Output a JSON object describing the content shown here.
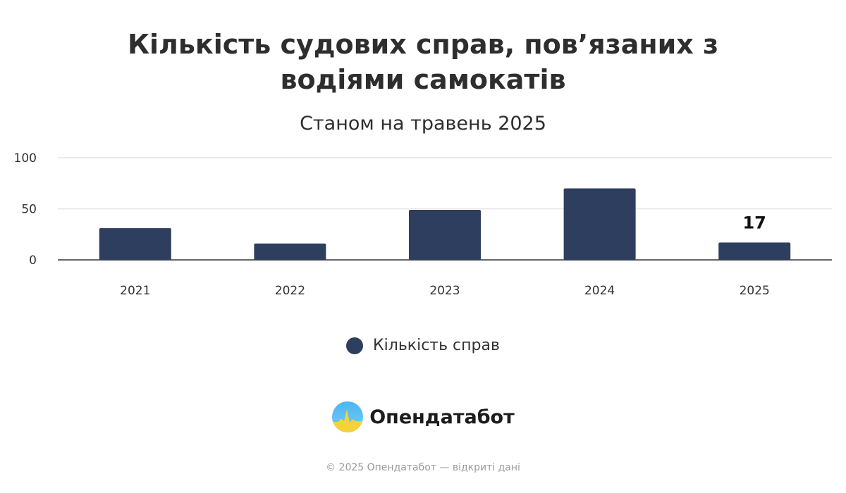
{
  "chart_data": {
    "type": "bar",
    "title": "Кількість судових справ, пов’язаних з водіями самокатів",
    "subtitle": "Станом на травень 2025",
    "categories": [
      "2021",
      "2022",
      "2023",
      "2024",
      "2025"
    ],
    "series": [
      {
        "name": "Кількість справ",
        "values": [
          31,
          16,
          49,
          70,
          17
        ]
      }
    ],
    "ylim": [
      0,
      100
    ],
    "yticks": [
      0,
      50,
      100
    ],
    "grid": true,
    "data_labels": [
      {
        "category": "2025",
        "text": "17"
      }
    ],
    "legend_position": "bottom",
    "bar_color": "#2e3e5e"
  },
  "logo": {
    "text": "Опендатабот",
    "icon": "opendatabot-logo-icon"
  },
  "footer": {
    "text": "© 2025 Опендатабот — відкриті дані"
  }
}
